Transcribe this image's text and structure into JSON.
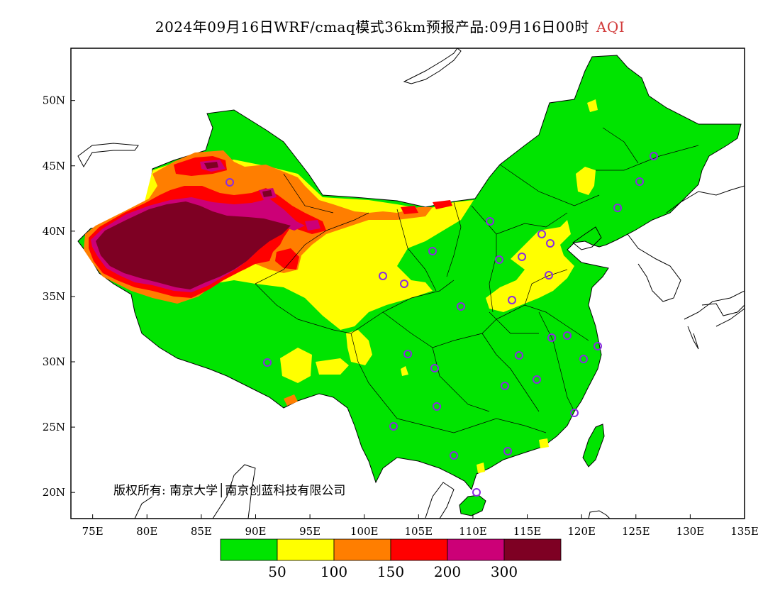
{
  "title": {
    "main": "2024年09月16日WRF/cmaq模式36km预报产品:09月16日00时",
    "variable": "AQI",
    "variable_color": "#d23c3c"
  },
  "map": {
    "lon_range": [
      73,
      135
    ],
    "lat_range": [
      18,
      54
    ],
    "x_ticks": [
      "75E",
      "80E",
      "85E",
      "90E",
      "95E",
      "100E",
      "105E",
      "110E",
      "115E",
      "120E",
      "125E",
      "130E",
      "135E"
    ],
    "x_tick_values": [
      75,
      80,
      85,
      90,
      95,
      100,
      105,
      110,
      115,
      120,
      125,
      130,
      135
    ],
    "y_ticks": [
      "20N",
      "25N",
      "30N",
      "35N",
      "40N",
      "45N",
      "50N"
    ],
    "y_tick_values": [
      20,
      25,
      30,
      35,
      40,
      45,
      50
    ],
    "copyright": "版权所有: 南京大学│南京创蓝科技有限公司",
    "station_marker_color": "#8a2be2",
    "background_color": "#ffffff"
  },
  "legend": {
    "colors": [
      "#00e400",
      "#ffff00",
      "#ff7e00",
      "#ff0000",
      "#cc0077",
      "#7e0023"
    ],
    "labels": [
      "50",
      "100",
      "150",
      "200",
      "300"
    ]
  }
}
